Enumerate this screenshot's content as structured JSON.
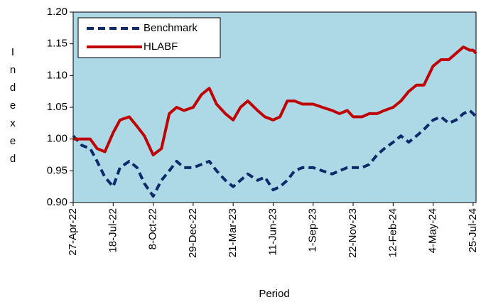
{
  "chart_data": {
    "type": "line",
    "x_label": "Period",
    "y_label": "Indexed",
    "x": [
      "2022-04-27",
      "2022-05-15",
      "2022-06-01",
      "2022-06-15",
      "2022-07-01",
      "2022-07-18",
      "2022-08-01",
      "2022-08-20",
      "2022-09-05",
      "2022-09-20",
      "2022-10-08",
      "2022-10-25",
      "2022-11-10",
      "2022-11-25",
      "2022-12-10",
      "2022-12-29",
      "2023-01-15",
      "2023-01-31",
      "2023-02-15",
      "2023-03-05",
      "2023-03-21",
      "2023-04-05",
      "2023-04-20",
      "2023-05-10",
      "2023-05-25",
      "2023-06-11",
      "2023-06-25",
      "2023-07-10",
      "2023-07-25",
      "2023-08-10",
      "2023-09-01",
      "2023-09-20",
      "2023-10-10",
      "2023-10-25",
      "2023-11-10",
      "2023-11-22",
      "2023-12-10",
      "2023-12-25",
      "2024-01-10",
      "2024-01-25",
      "2024-02-12",
      "2024-02-28",
      "2024-03-15",
      "2024-03-31",
      "2024-04-15",
      "2024-05-04",
      "2024-05-20",
      "2024-06-05",
      "2024-06-20",
      "2024-07-05",
      "2024-07-18",
      "2024-07-25",
      "2024-07-31"
    ],
    "series": [
      {
        "name": "Benchmark",
        "color": "#0d2a6b",
        "dashed": true,
        "values": [
          1.005,
          0.99,
          0.985,
          0.965,
          0.94,
          0.925,
          0.955,
          0.965,
          0.955,
          0.93,
          0.91,
          0.935,
          0.95,
          0.965,
          0.955,
          0.955,
          0.96,
          0.965,
          0.95,
          0.935,
          0.925,
          0.935,
          0.945,
          0.935,
          0.94,
          0.92,
          0.925,
          0.935,
          0.95,
          0.955,
          0.955,
          0.95,
          0.945,
          0.95,
          0.955,
          0.955,
          0.955,
          0.96,
          0.975,
          0.985,
          0.995,
          1.005,
          0.995,
          1.005,
          1.015,
          1.03,
          1.035,
          1.025,
          1.03,
          1.04,
          1.045,
          1.04,
          1.035
        ]
      },
      {
        "name": "HLABF",
        "color": "#c00000",
        "dashed": false,
        "values": [
          1.0,
          1.0,
          1.0,
          0.985,
          0.98,
          1.01,
          1.03,
          1.035,
          1.02,
          1.005,
          0.975,
          0.985,
          1.04,
          1.05,
          1.045,
          1.05,
          1.07,
          1.08,
          1.055,
          1.04,
          1.03,
          1.05,
          1.06,
          1.045,
          1.035,
          1.03,
          1.035,
          1.06,
          1.06,
          1.055,
          1.055,
          1.05,
          1.045,
          1.04,
          1.045,
          1.035,
          1.035,
          1.04,
          1.04,
          1.045,
          1.05,
          1.06,
          1.075,
          1.085,
          1.085,
          1.115,
          1.125,
          1.125,
          1.135,
          1.145,
          1.14,
          1.14,
          1.135
        ]
      }
    ],
    "xlim": [
      "2022-04-27",
      "2024-07-31"
    ],
    "xticks": [
      {
        "value": "2022-04-27",
        "label": "27-Apr-22"
      },
      {
        "value": "2022-07-18",
        "label": "18-Jul-22"
      },
      {
        "value": "2022-10-08",
        "label": "8-Oct-22"
      },
      {
        "value": "2022-12-29",
        "label": "29-Dec-22"
      },
      {
        "value": "2023-03-21",
        "label": "21-Mar-23"
      },
      {
        "value": "2023-06-11",
        "label": "11-Jun-23"
      },
      {
        "value": "2023-09-01",
        "label": "1-Sep-23"
      },
      {
        "value": "2023-11-22",
        "label": "22-Nov-23"
      },
      {
        "value": "2024-02-12",
        "label": "12-Feb-24"
      },
      {
        "value": "2024-05-04",
        "label": "4-May-24"
      },
      {
        "value": "2024-07-25",
        "label": "25-Jul-24"
      }
    ],
    "ylim": [
      0.9,
      1.2
    ],
    "yticks": [
      {
        "value": 0.9,
        "label": "0.90"
      },
      {
        "value": 0.95,
        "label": "0.95"
      },
      {
        "value": 1,
        "label": "1.00"
      },
      {
        "value": 1.05,
        "label": "1.05"
      },
      {
        "value": 1.1,
        "label": "1.10"
      },
      {
        "value": 1.15,
        "label": "1.15"
      },
      {
        "value": 1.2,
        "label": "1.20"
      }
    ],
    "legend": "upper left",
    "background": "#add8e6",
    "grid": false
  }
}
